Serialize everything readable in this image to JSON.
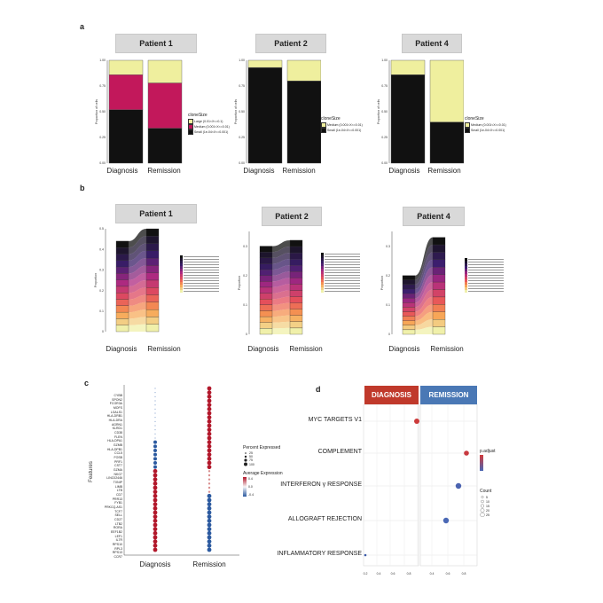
{
  "panels": {
    "a": "a",
    "b": "b",
    "c": "c",
    "d": "d"
  },
  "patients": [
    "Patient 1",
    "Patient 2",
    "Patient 4"
  ],
  "x_categories": [
    "Diagnosis",
    "Remission"
  ],
  "a": {
    "ylabel": "Proportion of cells",
    "legend_title": "cloneSize",
    "plots": [
      {
        "patient": "Patient 1",
        "legend": [
          "Large (0.01<X<=0.1)",
          "Medium (0.001<X<=0.01)",
          "Small (1e-04<X<=0.001)"
        ],
        "stacks": [
          [
            0.52,
            0.34,
            0.14
          ],
          [
            0.34,
            0.44,
            0.22
          ]
        ],
        "colors": [
          "#111111",
          "#c2185b",
          "#efef9e"
        ],
        "ticks": [
          "0.00",
          "0.25",
          "0.50",
          "0.75",
          "1.00"
        ]
      },
      {
        "patient": "Patient 2",
        "legend": [
          "Medium (0.001<X<=0.01)",
          "Small (1e-04<X<=0.001)"
        ],
        "stacks": [
          [
            0.93,
            0.07
          ],
          [
            0.8,
            0.2
          ]
        ],
        "colors": [
          "#111111",
          "#efef9e"
        ],
        "ticks": [
          "0.00",
          "0.25",
          "0.50",
          "0.75",
          "1.00"
        ]
      },
      {
        "patient": "Patient 4",
        "legend": [
          "Medium (0.001<X<=0.01)",
          "Small (1e-04<X<=0.001)"
        ],
        "stacks": [
          [
            0.86,
            0.14
          ],
          [
            0.4,
            0.6
          ]
        ],
        "colors": [
          "#111111",
          "#efef9e"
        ],
        "ticks": [
          "0.00",
          "0.25",
          "0.50",
          "0.75",
          "1.00"
        ]
      }
    ]
  },
  "b": {
    "ylabel": "Proportion",
    "plots": [
      {
        "patient": "Patient 1",
        "ticks": [
          "0",
          "0.1",
          "0.2",
          "0.3",
          "0.4",
          "0.5"
        ],
        "ymax": 0.5,
        "totals": [
          0.44,
          0.5
        ],
        "n": 14
      },
      {
        "patient": "Patient 2",
        "ticks": [
          "0",
          "0.1",
          "0.2",
          "0.3"
        ],
        "ymax": 0.35,
        "totals": [
          0.3,
          0.32
        ],
        "n": 15
      },
      {
        "patient": "Patient 4",
        "ticks": [
          "0",
          "0.1",
          "0.2",
          "0.3"
        ],
        "ymax": 0.35,
        "totals": [
          0.2,
          0.33
        ],
        "n": 13
      }
    ]
  },
  "c": {
    "ylabel": "Features",
    "features": [
      "CYBB",
      "SPON2",
      "FCGR3A",
      "MOFS",
      "LGALS1",
      "HLA-DRB1",
      "HLA-DRA",
      "AGRN1",
      "KLRD1",
      "CD38",
      "FLEN",
      "HLA-DPA1",
      "GZMB",
      "HLA-DPB1",
      "CCL5",
      "FOSB",
      "PRF1",
      "CST7",
      "GZMA",
      "NKG7",
      "LINC02446",
      "TXNIP",
      "LIMB",
      "LTB",
      "CD7",
      "PRR13",
      "FYB1",
      "PRKCQ-AS1",
      "TCF7",
      "SELL",
      "CD27",
      "LTB2",
      "RORA",
      "EEF1B2",
      "LEF1",
      "IL7R",
      "RPS10",
      "RPL3",
      "RPS13",
      "CCR7"
    ],
    "size_legend_title": "Percent Expressed",
    "size_legend": [
      "25",
      "50",
      "75",
      "100"
    ],
    "color_legend_title": "Average Expression",
    "color_legend": [
      "0.4",
      "0.0",
      "-0.4"
    ]
  },
  "d": {
    "headers": [
      "DIAGNOSIS",
      "REMISSION"
    ],
    "terms": [
      "MYC TARGETS V1",
      "COMPLEMENT",
      "INTERFERON γ  RESPONSE",
      "ALLOGRAFT REJECTION",
      "INFLAMMATORY RESPONSE"
    ],
    "xticks_left": [
      "0.2",
      "0.4",
      "0.6",
      "0.8"
    ],
    "xticks_right": [
      "0.4",
      "0.6",
      "0.8"
    ],
    "legend_padj_title": "p.adjust",
    "legend_count_title": "Count",
    "legend_count": [
      "5",
      "10",
      "15",
      "20",
      "25"
    ]
  },
  "colors": {
    "header_bg": "#d9d9d9",
    "diag_red": "#c0392b",
    "rem_blue": "#4a78b5",
    "pos": "#b2182b",
    "neg": "#2c5aa0"
  }
}
